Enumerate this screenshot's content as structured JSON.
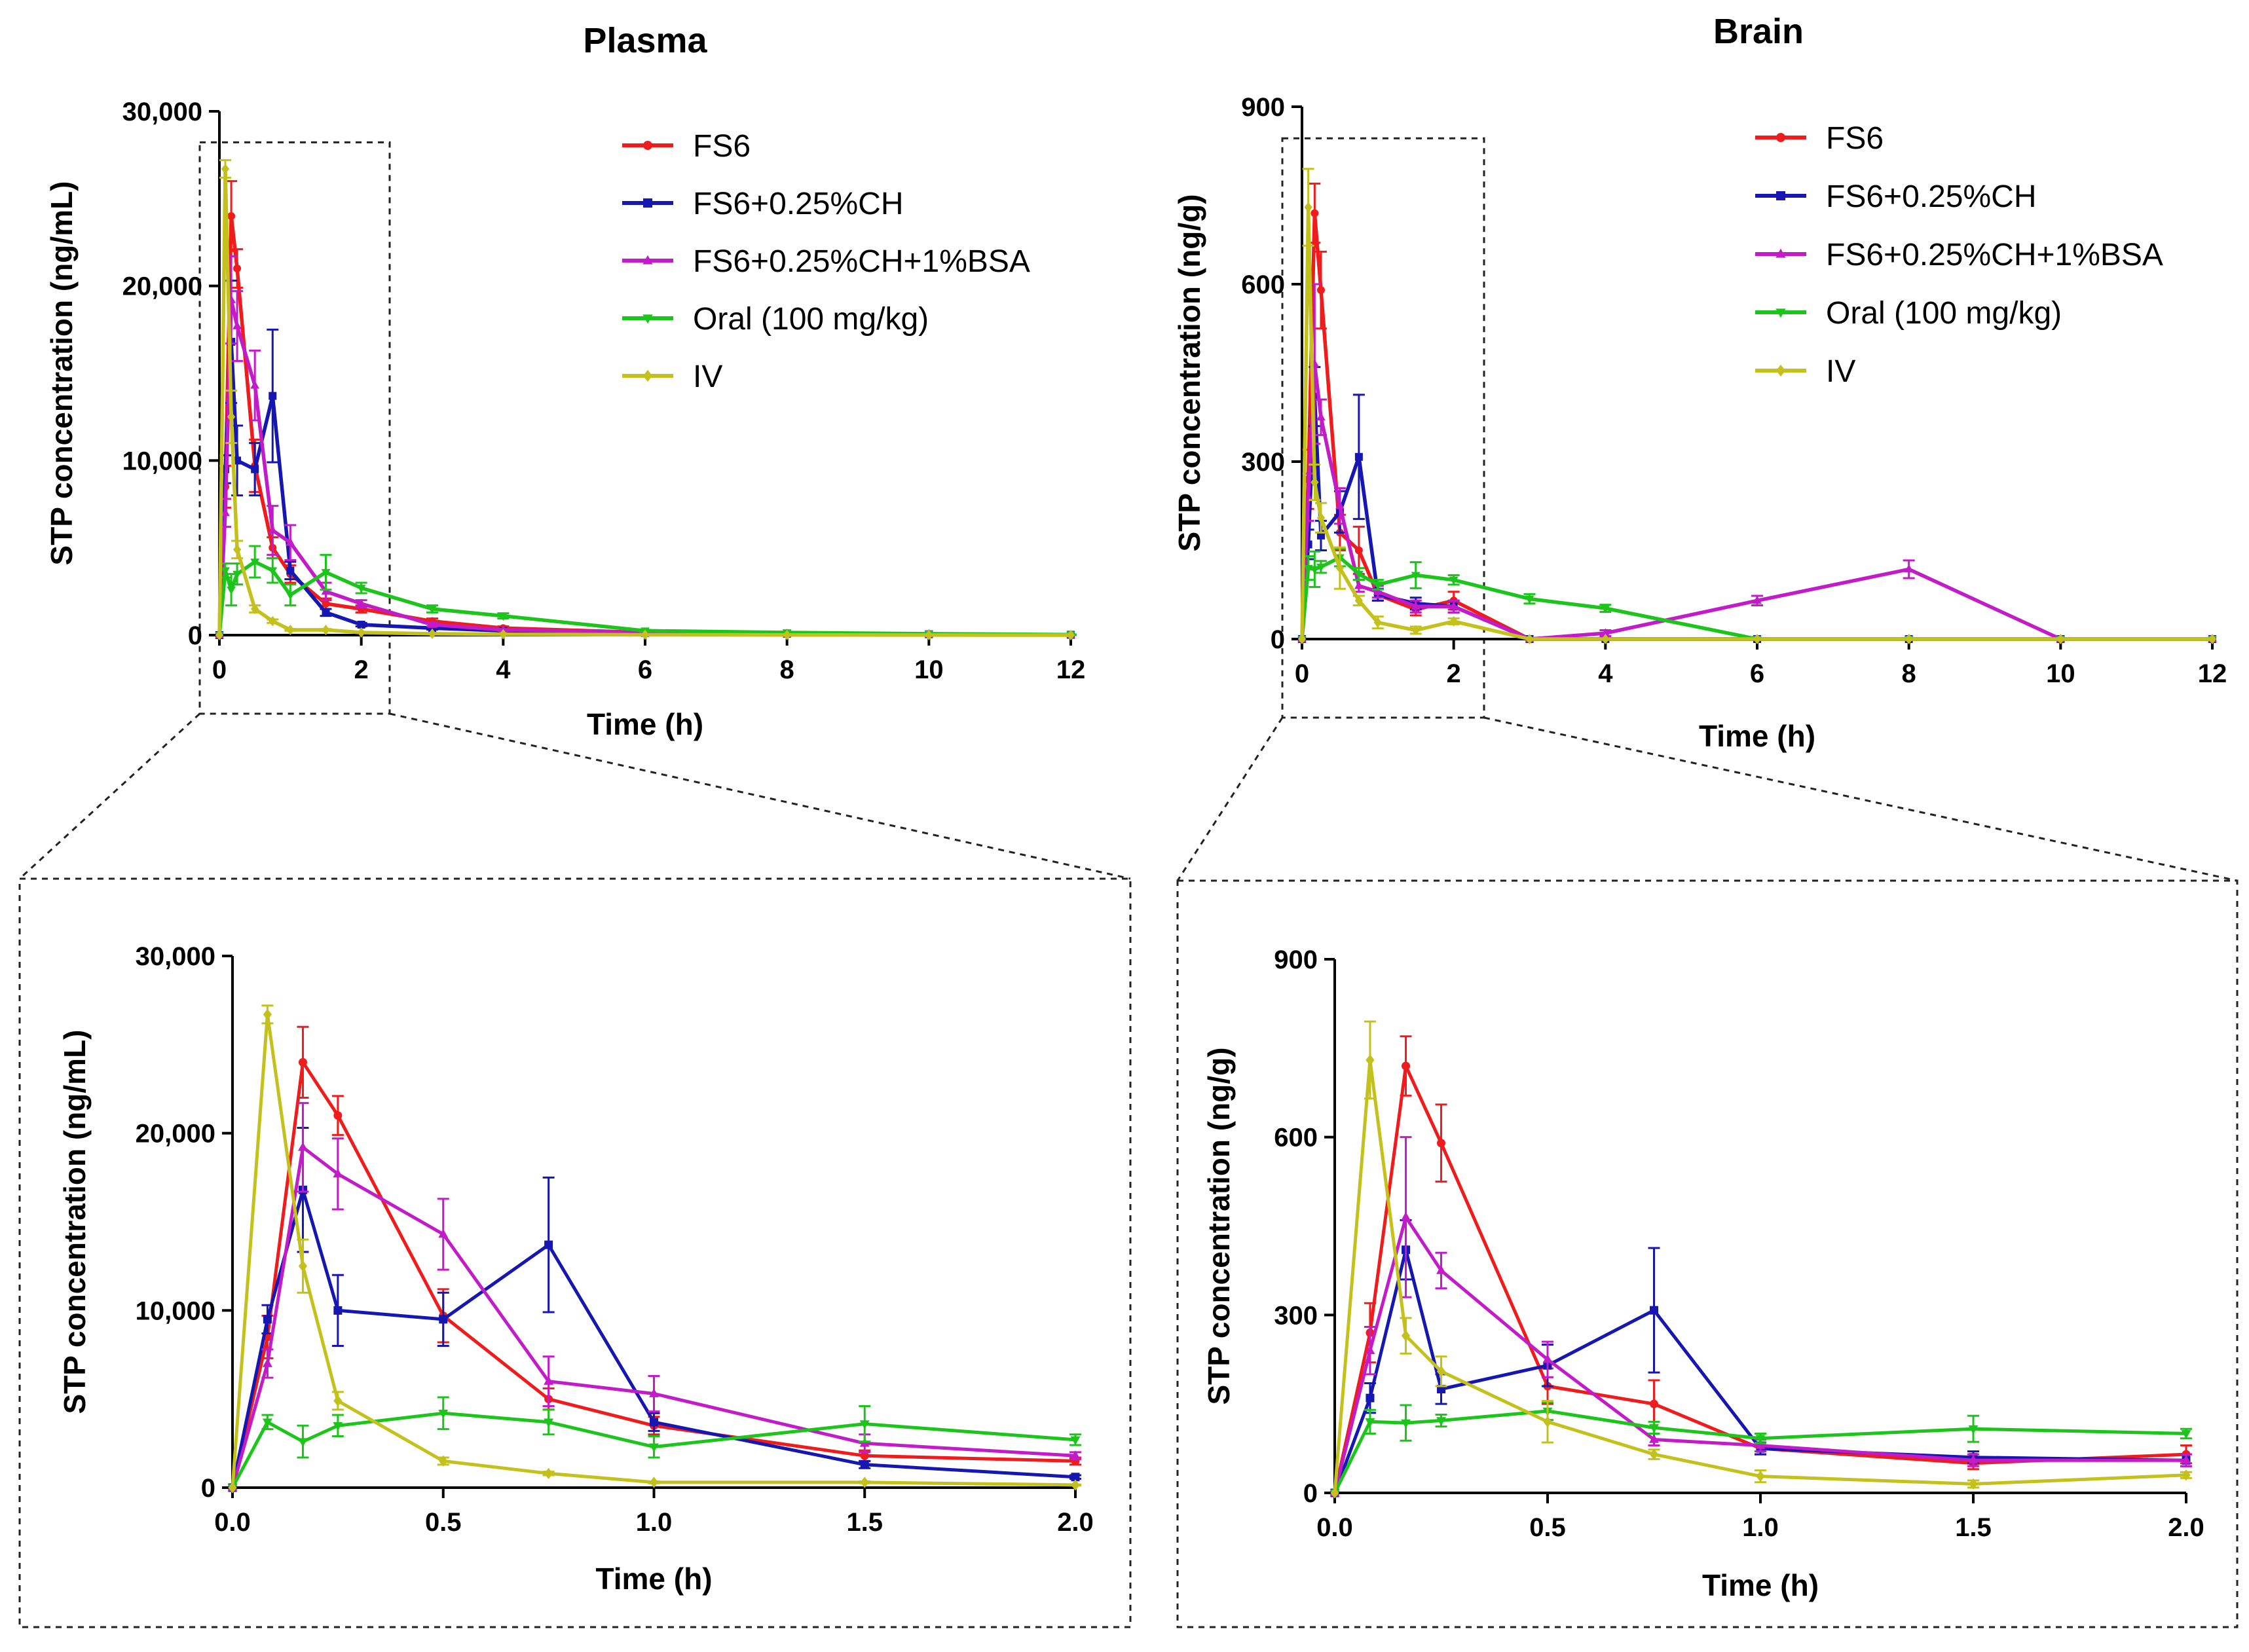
{
  "figure": {
    "colors": {
      "FS6": "#ee1c1c",
      "FS6+0.25%CH": "#1616b0",
      "FS6+0.25%CH+1%BSA": "#c21cc8",
      "Oral (100 mg/kg)": "#1cc41c",
      "IV": "#c4c01c"
    },
    "zoom_style": "dashed box with dashed connector lines to enlarged panel below"
  },
  "chart_data": [
    {
      "id": "plasma",
      "type": "line",
      "title": "Plasma",
      "xlabel": "Time (h)",
      "ylabel": "STP concentration (ng/mL)",
      "xlim": [
        0,
        12
      ],
      "ylim": [
        0,
        30000
      ],
      "xticks": [
        0,
        2,
        4,
        6,
        8,
        10,
        12
      ],
      "xtick_labels": [
        "0",
        "2",
        "4",
        "6",
        "8",
        "10",
        "12"
      ],
      "yticks": [
        0,
        10000,
        20000,
        30000
      ],
      "ytick_labels": [
        "0",
        "10,000",
        "20,000",
        "30,000"
      ],
      "legend": "top-right",
      "zoom_region": {
        "x": [
          0,
          2.4
        ],
        "y": [
          0,
          28000
        ]
      },
      "series": [
        {
          "name": "FS6",
          "marker": "circle",
          "x": [
            0,
            0.083,
            0.167,
            0.25,
            0.5,
            0.75,
            1,
            1.5,
            2,
            3,
            4,
            6,
            8,
            10,
            12
          ],
          "y": [
            0,
            8500,
            24000,
            21000,
            9700,
            5000,
            3500,
            1800,
            1500,
            800,
            400,
            150,
            80,
            50,
            20
          ],
          "err": [
            0,
            1200,
            2000,
            1100,
            1500,
            600,
            500,
            300,
            200,
            150,
            100,
            50,
            30,
            20,
            10
          ]
        },
        {
          "name": "FS6+0.25%CH",
          "marker": "square",
          "x": [
            0,
            0.083,
            0.167,
            0.25,
            0.5,
            0.75,
            1,
            1.5,
            2,
            3,
            4,
            6,
            8,
            10,
            12
          ],
          "y": [
            0,
            9500,
            16800,
            10000,
            9500,
            13700,
            3700,
            1300,
            600,
            400,
            250,
            120,
            80,
            50,
            20
          ],
          "err": [
            0,
            800,
            3500,
            2000,
            1500,
            3800,
            500,
            200,
            100,
            80,
            50,
            30,
            20,
            10,
            5
          ]
        },
        {
          "name": "FS6+0.25%CH+1%BSA",
          "marker": "triangle-up",
          "x": [
            0,
            0.083,
            0.167,
            0.25,
            0.5,
            0.75,
            1,
            1.5,
            2,
            3,
            4,
            6,
            8,
            10,
            12
          ],
          "y": [
            0,
            7000,
            19200,
            17700,
            14300,
            6000,
            5300,
            2500,
            1800,
            600,
            300,
            150,
            80,
            50,
            20
          ],
          "err": [
            0,
            800,
            2500,
            2000,
            2000,
            1400,
            1000,
            500,
            200,
            100,
            50,
            30,
            20,
            10,
            5
          ]
        },
        {
          "name": "Oral (100 mg/kg)",
          "marker": "triangle-down",
          "x": [
            0,
            0.083,
            0.167,
            0.25,
            0.5,
            0.75,
            1,
            1.5,
            2,
            3,
            4,
            6,
            8,
            10,
            12
          ],
          "y": [
            0,
            3700,
            2600,
            3500,
            4200,
            3700,
            2300,
            3600,
            2700,
            1500,
            1100,
            250,
            150,
            80,
            30
          ],
          "err": [
            0,
            400,
            900,
            600,
            900,
            700,
            600,
            1000,
            300,
            200,
            150,
            50,
            30,
            20,
            10
          ]
        },
        {
          "name": "IV",
          "marker": "diamond",
          "x": [
            0,
            0.083,
            0.167,
            0.25,
            0.5,
            0.75,
            1,
            1.5,
            2,
            3,
            4,
            6,
            8,
            10,
            12
          ],
          "y": [
            0,
            26700,
            12500,
            4900,
            1500,
            800,
            300,
            300,
            150,
            80,
            50,
            20,
            10,
            5,
            0
          ],
          "err": [
            0,
            500,
            1500,
            500,
            200,
            100,
            50,
            50,
            30,
            20,
            10,
            5,
            3,
            2,
            0
          ]
        }
      ]
    },
    {
      "id": "brain",
      "type": "line",
      "title": "Brain",
      "xlabel": "Time (h)",
      "ylabel": "STP concentration (ng/g)",
      "xlim": [
        0,
        12
      ],
      "ylim": [
        0,
        900
      ],
      "xticks": [
        0,
        2,
        4,
        6,
        8,
        10,
        12
      ],
      "xtick_labels": [
        "0",
        "2",
        "4",
        "6",
        "8",
        "10",
        "12"
      ],
      "yticks": [
        0,
        300,
        600,
        900
      ],
      "ytick_labels": [
        "0",
        "300",
        "600",
        "900"
      ],
      "legend": "top-right",
      "zoom_region": {
        "x": [
          0,
          2.4
        ],
        "y": [
          0,
          840
        ]
      },
      "series": [
        {
          "name": "FS6",
          "marker": "circle",
          "x": [
            0,
            0.083,
            0.167,
            0.25,
            0.5,
            0.75,
            1,
            1.5,
            2,
            3,
            4,
            6,
            8,
            10,
            12
          ],
          "y": [
            0,
            270,
            720,
            590,
            180,
            150,
            75,
            50,
            65,
            0,
            0,
            0,
            0,
            0,
            0
          ],
          "err": [
            0,
            50,
            50,
            65,
            30,
            40,
            10,
            10,
            15,
            0,
            0,
            0,
            0,
            0,
            0
          ]
        },
        {
          "name": "FS6+0.25%CH",
          "marker": "square",
          "x": [
            0,
            0.083,
            0.167,
            0.25,
            0.5,
            0.75,
            1,
            1.5,
            2,
            3,
            4,
            6,
            8,
            10,
            12
          ],
          "y": [
            0,
            160,
            410,
            175,
            215,
            308,
            75,
            60,
            55,
            0,
            0,
            0,
            0,
            0,
            0
          ],
          "err": [
            0,
            25,
            50,
            25,
            35,
            105,
            10,
            10,
            10,
            0,
            0,
            0,
            0,
            0,
            0
          ]
        },
        {
          "name": "FS6+0.25%CH+1%BSA",
          "marker": "triangle-up",
          "x": [
            0,
            0.083,
            0.167,
            0.25,
            0.5,
            0.75,
            1,
            1.5,
            2,
            3,
            4,
            6,
            8,
            10,
            12
          ],
          "y": [
            0,
            240,
            465,
            375,
            225,
            90,
            80,
            55,
            55,
            0,
            10,
            65,
            118,
            0,
            0
          ],
          "err": [
            0,
            40,
            135,
            30,
            30,
            10,
            10,
            10,
            10,
            0,
            5,
            8,
            15,
            0,
            0
          ]
        },
        {
          "name": "Oral (100 mg/kg)",
          "marker": "triangle-down",
          "x": [
            0,
            0.083,
            0.167,
            0.25,
            0.5,
            0.75,
            1,
            1.5,
            2,
            3,
            4,
            6,
            8,
            10,
            12
          ],
          "y": [
            0,
            120,
            118,
            122,
            138,
            110,
            92,
            108,
            100,
            68,
            52,
            0,
            0,
            0,
            0
          ],
          "err": [
            0,
            20,
            30,
            10,
            15,
            10,
            8,
            22,
            8,
            8,
            6,
            0,
            0,
            0,
            0
          ]
        },
        {
          "name": "IV",
          "marker": "diamond",
          "x": [
            0,
            0.083,
            0.167,
            0.25,
            0.5,
            0.75,
            1,
            1.5,
            2,
            3,
            4,
            6,
            8,
            10,
            12
          ],
          "y": [
            0,
            730,
            265,
            205,
            120,
            65,
            28,
            15,
            30,
            0,
            0,
            0,
            0,
            0,
            0
          ],
          "err": [
            0,
            65,
            30,
            25,
            35,
            8,
            10,
            6,
            5,
            0,
            0,
            0,
            0,
            0,
            0
          ]
        }
      ]
    },
    {
      "id": "plasma-zoom",
      "type": "line",
      "title": "",
      "source": "plasma",
      "xlabel": "Time (h)",
      "ylabel": "STP concentration (ng/mL)",
      "xlim": [
        0,
        2
      ],
      "ylim": [
        0,
        30000
      ],
      "xticks": [
        0,
        0.5,
        1,
        1.5,
        2
      ],
      "xtick_labels": [
        "0.0",
        "0.5",
        "1.0",
        "1.5",
        "2.0"
      ],
      "yticks": [
        0,
        10000,
        20000,
        30000
      ],
      "ytick_labels": [
        "0",
        "10,000",
        "20,000",
        "30,000"
      ]
    },
    {
      "id": "brain-zoom",
      "type": "line",
      "title": "",
      "source": "brain",
      "xlabel": "Time (h)",
      "ylabel": "STP concentration (ng/g)",
      "xlim": [
        0,
        2
      ],
      "ylim": [
        0,
        900
      ],
      "xticks": [
        0,
        0.5,
        1,
        1.5,
        2
      ],
      "xtick_labels": [
        "0.0",
        "0.5",
        "1.0",
        "1.5",
        "2.0"
      ],
      "yticks": [
        0,
        300,
        600,
        900
      ],
      "ytick_labels": [
        "0",
        "300",
        "600",
        "900"
      ]
    }
  ]
}
